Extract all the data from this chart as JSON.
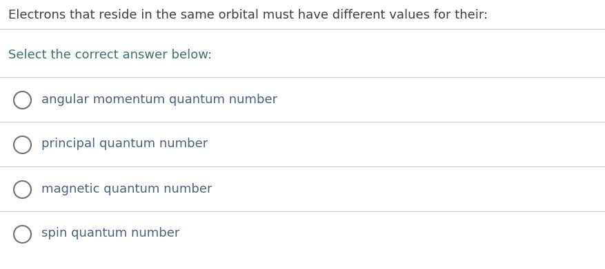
{
  "title": "Electrons that reside in the same orbital must have different values for their:",
  "subtitle": "Select the correct answer below:",
  "options": [
    "angular momentum quantum number",
    "principal quantum number",
    "magnetic quantum number",
    "spin quantum number"
  ],
  "title_color": "#3d3d3d",
  "subtitle_color": "#3a7070",
  "option_color": "#4a6080",
  "circle_color": "#707070",
  "line_color": "#c8c8c8",
  "bg_color": "#ffffff",
  "title_fontsize": 13.0,
  "subtitle_fontsize": 13.0,
  "option_fontsize": 13.0,
  "fig_width": 8.77,
  "fig_height": 3.91,
  "dpi": 100
}
